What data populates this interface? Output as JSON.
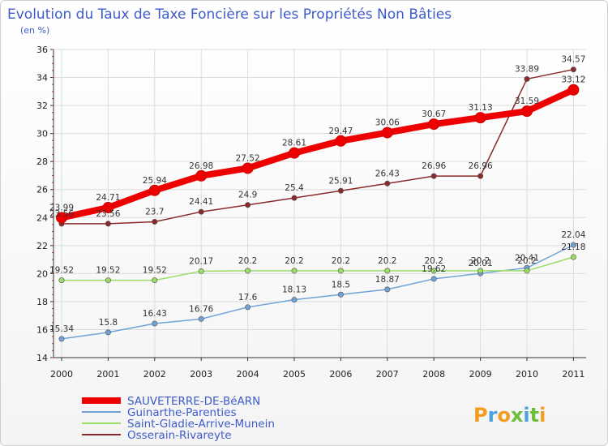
{
  "chart_data": {
    "type": "line",
    "title": "Evolution du Taux de Taxe Foncière sur les Propriétés Non Bâties",
    "subtitle": "(en %)",
    "xlabel": "",
    "ylabel": "",
    "ylim": [
      14,
      36
    ],
    "yticks": [
      14,
      16,
      18,
      20,
      22,
      24,
      26,
      28,
      30,
      32,
      34,
      36
    ],
    "categories": [
      "2000",
      "2001",
      "2002",
      "2003",
      "2004",
      "2005",
      "2006",
      "2007",
      "2008",
      "2009",
      "2010",
      "2011"
    ],
    "grid": true,
    "legend_position": "bottom-left",
    "series": [
      {
        "name": "SAUVETERRE-DE-BéARN",
        "color": "#ee0000",
        "values": [
          23.99,
          24.71,
          25.94,
          26.98,
          27.52,
          28.61,
          29.47,
          30.06,
          30.67,
          31.13,
          31.59,
          33.12
        ],
        "labels": [
          "23.99",
          "24.71",
          "25.94",
          "26.98",
          "27.52",
          "28.61",
          "29.47",
          "30.06",
          "30.67",
          "31.13",
          "31.59",
          "33.12"
        ]
      },
      {
        "name": "Guinarthe-Parenties",
        "color": "#6fa3d6",
        "values": [
          15.34,
          15.8,
          16.43,
          16.76,
          17.6,
          18.13,
          18.5,
          18.87,
          19.62,
          20.01,
          20.41,
          22.04
        ],
        "labels": [
          "15.34",
          "15.8",
          "16.43",
          "16.76",
          "17.6",
          "18.13",
          "18.5",
          "18.87",
          "19.62",
          "20.01",
          "20.41",
          "22.04"
        ]
      },
      {
        "name": "Saint-Gladie-Arrive-Munein",
        "color": "#99dd66",
        "values": [
          19.52,
          19.52,
          19.52,
          20.17,
          20.2,
          20.2,
          20.2,
          20.2,
          20.2,
          20.2,
          20.2,
          21.18
        ],
        "labels": [
          "19.52",
          "19.52",
          "19.52",
          "20.17",
          "20.2",
          "20.2",
          "20.2",
          "20.2",
          "20.2",
          "20.2",
          "20.2",
          "21.18"
        ]
      },
      {
        "name": "Osserain-Rivareyte",
        "color": "#8b2a2a",
        "values": [
          23.56,
          23.56,
          23.7,
          24.41,
          24.9,
          25.4,
          25.91,
          26.43,
          26.96,
          26.96,
          33.89,
          34.57
        ],
        "labels": [
          "23.56",
          "23.56",
          "23.7",
          "24.41",
          "24.9",
          "25.4",
          "25.91",
          "26.43",
          "26.96",
          "26.96",
          "33.89",
          "34.57"
        ]
      }
    ]
  },
  "logo": {
    "text": "Proxiti",
    "letters": [
      "P",
      "r",
      "o",
      "x",
      "i",
      "t",
      "i"
    ],
    "colors": [
      "#f29d1c",
      "#4aa3df",
      "#f29d1c",
      "#6cbf3a",
      "#4aa3df",
      "#6cbf3a",
      "#f29d1c"
    ]
  }
}
